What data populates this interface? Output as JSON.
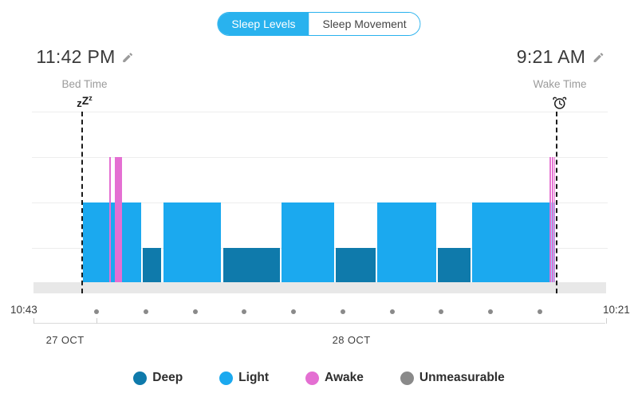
{
  "toggle": {
    "options": [
      {
        "label": "Sleep Levels",
        "selected": true
      },
      {
        "label": "Sleep Movement",
        "selected": false
      }
    ]
  },
  "bed_time": {
    "value": "11:42 PM",
    "label": "Bed Time"
  },
  "wake_time": {
    "value": "9:21 AM",
    "label": "Wake Time"
  },
  "axis": {
    "start_label": "10:43",
    "end_label": "10:21"
  },
  "legend": {
    "items": [
      {
        "label": "Deep",
        "color": "#0f7aab"
      },
      {
        "label": "Light",
        "color": "#1ba9ef"
      },
      {
        "label": "Awake",
        "color": "#e46fd2"
      },
      {
        "label": "Unmeasurable",
        "color": "#8a8a8a"
      }
    ]
  },
  "colors": {
    "accent": "#29b2ee",
    "light": "#1ba9ef",
    "deep": "#0f7aab",
    "awake": "#e46fd2",
    "unmeasurable": "#8a8a8a",
    "band": "#e8e8e8",
    "gridline": "#ededed"
  },
  "chart_data": {
    "type": "area",
    "title": "Sleep Levels",
    "x_start": "10:43 PM",
    "x_end": "10:21 AM",
    "total_min": 698,
    "bed_min": 59,
    "wake_min": 638,
    "levels": [
      "awake",
      "light",
      "deep"
    ],
    "grid": true,
    "segments": [
      {
        "level": "light",
        "start_min": 60,
        "end_min": 132,
        "start": "11:43 PM",
        "end": "12:55 AM"
      },
      {
        "level": "deep",
        "start_min": 133,
        "end_min": 157,
        "start": "12:56 AM",
        "end": "1:20 AM"
      },
      {
        "level": "light",
        "start_min": 158,
        "end_min": 229,
        "start": "1:21 AM",
        "end": "2:32 AM"
      },
      {
        "level": "deep",
        "start_min": 231,
        "end_min": 301,
        "start": "2:34 AM",
        "end": "3:44 AM"
      },
      {
        "level": "light",
        "start_min": 302,
        "end_min": 367,
        "start": "3:45 AM",
        "end": "4:50 AM"
      },
      {
        "level": "deep",
        "start_min": 368,
        "end_min": 418,
        "start": "4:51 AM",
        "end": "5:41 AM"
      },
      {
        "level": "light",
        "start_min": 419,
        "end_min": 492,
        "start": "5:42 AM",
        "end": "6:55 AM"
      },
      {
        "level": "deep",
        "start_min": 493,
        "end_min": 534,
        "start": "6:56 AM",
        "end": "7:37 AM"
      },
      {
        "level": "light",
        "start_min": 535,
        "end_min": 637,
        "start": "7:38 AM",
        "end": "9:20 AM"
      }
    ],
    "awake_overlays": [
      {
        "start_min": 92,
        "end_min": 95,
        "start": "12:15 AM",
        "end": "12:18 AM",
        "striped": false
      },
      {
        "start_min": 99,
        "end_min": 109,
        "start": "12:22 AM",
        "end": "12:32 AM",
        "striped": false
      },
      {
        "start_min": 629,
        "end_min": 637,
        "start": "9:12 AM",
        "end": "9:20 AM",
        "striped": true
      }
    ],
    "hour_dots_min": [
      77,
      137,
      197,
      257,
      317,
      377,
      437,
      497,
      557,
      617
    ],
    "dates": [
      {
        "label": "27 OCT",
        "tick_min": 0,
        "center_min": 38.5
      },
      {
        "label": "28 OCT",
        "tick_min": 77,
        "center_min": 387.5
      }
    ]
  }
}
